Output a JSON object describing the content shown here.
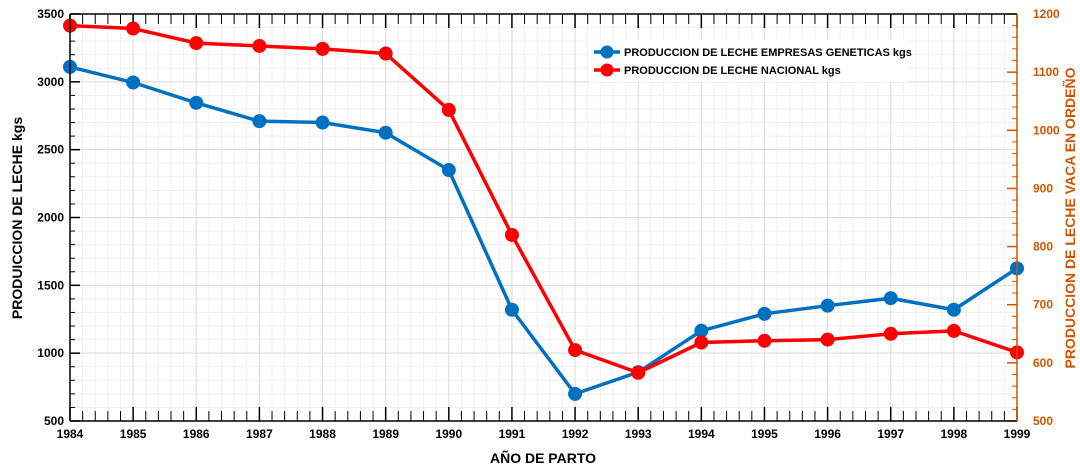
{
  "chart_data": {
    "type": "line",
    "x": [
      "1984",
      "1985",
      "1986",
      "1987",
      "1988",
      "1989",
      "1990",
      "1991",
      "1992",
      "1993",
      "1994",
      "1995",
      "1996",
      "1997",
      "1998",
      "1999"
    ],
    "xlabel": "AÑO DE PARTO",
    "ylabel": "PRODUICCION DE LECHE kgs",
    "ylabel_right": "PRODUCCION DE LECHE VACA EN ORDEÑO",
    "ylim": [
      500,
      3500
    ],
    "ylim_right": [
      500,
      1200
    ],
    "yticks": [
      500,
      1000,
      1500,
      2000,
      2500,
      3000,
      3500
    ],
    "yticks_right": [
      500,
      600,
      700,
      800,
      900,
      1000,
      1100,
      1200
    ],
    "grid": true,
    "legend_position": "top-right",
    "series": [
      {
        "name": "PRODUCCION DE LECHE EMPRESAS GENETICAS kgs",
        "axis": "left",
        "color": "#0070c0",
        "values": [
          3110,
          2995,
          2845,
          2710,
          2700,
          2625,
          2350,
          1320,
          700,
          860,
          1165,
          1290,
          1350,
          1405,
          1320,
          1625
        ]
      },
      {
        "name": "PRODUCCION DE LECHE NACIONAL kgs",
        "axis": "right",
        "color": "#ff0000",
        "values": [
          1180,
          1175,
          1150,
          1145,
          1140,
          1132,
          1035,
          820,
          622,
          583,
          635,
          638,
          640,
          650,
          655,
          618
        ]
      }
    ],
    "colors": {
      "right_axis": "#d35400",
      "grid": "#d9d9d9"
    }
  }
}
